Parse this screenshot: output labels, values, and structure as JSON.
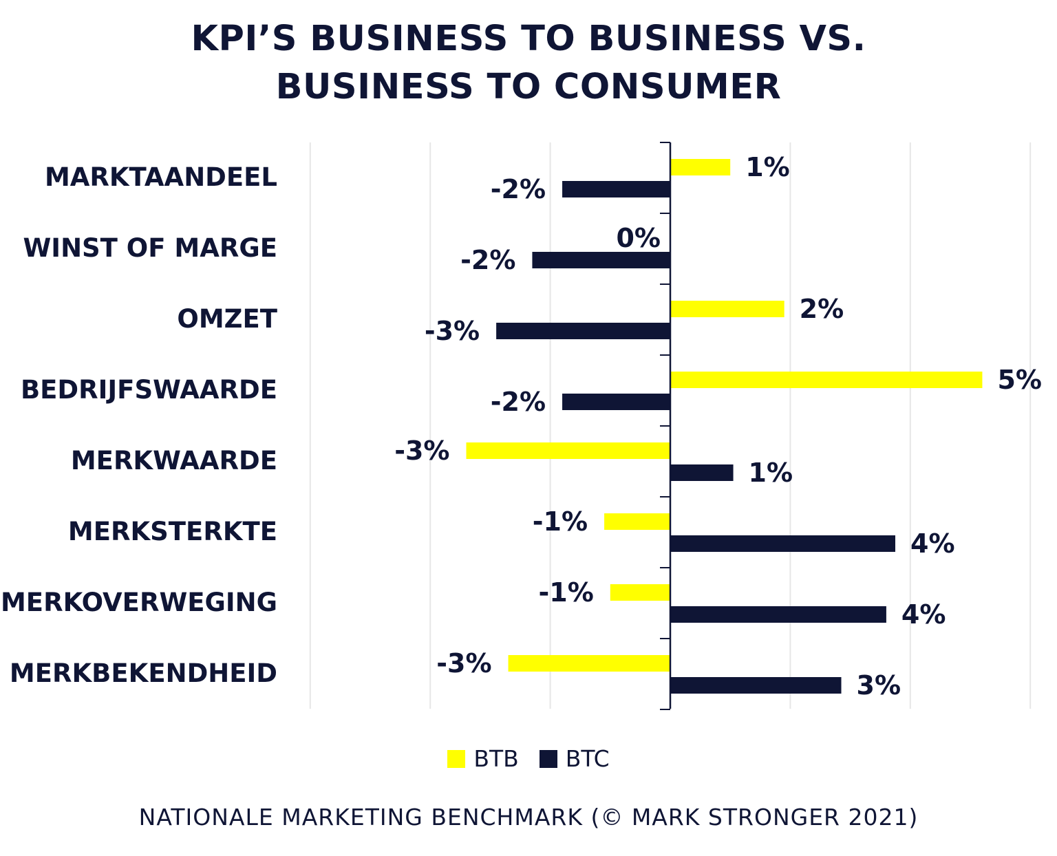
{
  "title_line1": "KPI’S BUSINESS TO BUSINESS VS.",
  "title_line2": "BUSINESS TO CONSUMER",
  "source": "NATIONALE MARKETING BENCHMARK (© MARK STRONGER 2021)",
  "colors": {
    "btb": "#ffff00",
    "btc": "#0f1535",
    "text": "#0f1535",
    "grid": "#e6e6e6"
  },
  "chart_data": {
    "type": "bar",
    "orientation": "horizontal",
    "categories": [
      "MARKTAANDEEL",
      "WINST OF MARGE",
      "OMZET",
      "BEDRIJFSWAARDE",
      "MERKWAARDE",
      "MERKSTERKTE",
      "MERKOVERWEGING",
      "MERKBEKENDHEID"
    ],
    "series": [
      {
        "name": "BTB",
        "values": [
          1,
          0,
          2,
          5,
          -3,
          -1,
          -1,
          -3
        ],
        "bar_values": [
          1.0,
          0,
          1.9,
          5.2,
          -3.4,
          -1.1,
          -1.0,
          -2.7
        ],
        "labels": [
          "1%",
          "0%",
          "2%",
          "5%",
          "-3%",
          "-1%",
          "-1%",
          "-3%"
        ]
      },
      {
        "name": "BTC",
        "values": [
          -2,
          -2,
          -3,
          -2,
          1,
          4,
          4,
          3
        ],
        "bar_values": [
          -1.8,
          -2.3,
          -2.9,
          -1.8,
          1.05,
          3.75,
          3.6,
          2.85
        ],
        "labels": [
          "-2%",
          "-2%",
          "-3%",
          "-2%",
          "1%",
          "4%",
          "4%",
          "3%"
        ]
      }
    ],
    "xlim": [
      -6,
      6
    ],
    "grid": true,
    "legend": "bottom-center"
  }
}
